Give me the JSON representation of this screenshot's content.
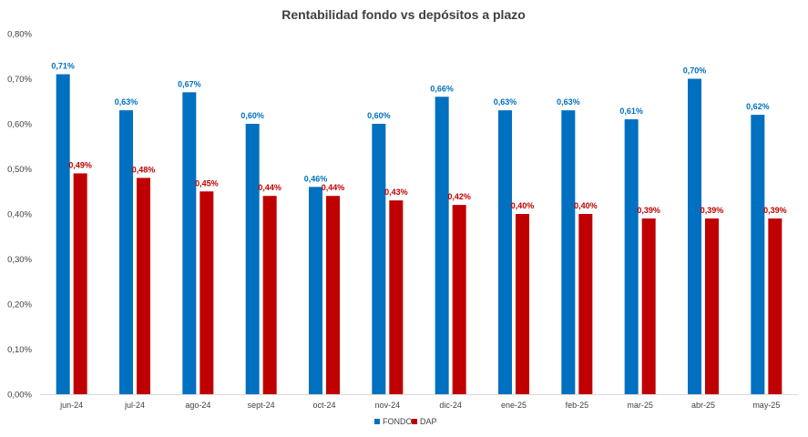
{
  "chart_data": {
    "type": "bar",
    "title": "Rentabilidad fondo vs depósitos a plazo",
    "xlabel": "",
    "ylabel": "",
    "ylim": [
      0,
      0.8
    ],
    "yticks": [
      0,
      0.1,
      0.2,
      0.3,
      0.4,
      0.5,
      0.6,
      0.7,
      0.8
    ],
    "ytick_labels": [
      "0,00%",
      "0,10%",
      "0,20%",
      "0,30%",
      "0,40%",
      "0,50%",
      "0,60%",
      "0,70%",
      "0,80%"
    ],
    "grid": false,
    "legend_position": "bottom",
    "categories": [
      "jun-24",
      "jul-24",
      "ago-24",
      "sept-24",
      "oct-24",
      "nov-24",
      "dic-24",
      "ene-25",
      "feb-25",
      "mar-25",
      "abr-25",
      "may-25"
    ],
    "series": [
      {
        "name": "FONDO",
        "color": "#0070C0",
        "values": [
          0.71,
          0.63,
          0.67,
          0.6,
          0.46,
          0.6,
          0.66,
          0.63,
          0.63,
          0.61,
          0.7,
          0.62
        ],
        "labels": [
          "0,71%",
          "0,63%",
          "0,67%",
          "0,60%",
          "0,46%",
          "0,60%",
          "0,66%",
          "0,63%",
          "0,63%",
          "0,61%",
          "0,70%",
          "0,62%"
        ]
      },
      {
        "name": "DAP",
        "color": "#C00000",
        "values": [
          0.49,
          0.48,
          0.45,
          0.44,
          0.44,
          0.43,
          0.42,
          0.4,
          0.4,
          0.39,
          0.39,
          0.39
        ],
        "labels": [
          "0,49%",
          "0,48%",
          "0,45%",
          "0,44%",
          "0,44%",
          "0,43%",
          "0,42%",
          "0,40%",
          "0,40%",
          "0,39%",
          "0,39%",
          "0,39%"
        ]
      }
    ]
  }
}
